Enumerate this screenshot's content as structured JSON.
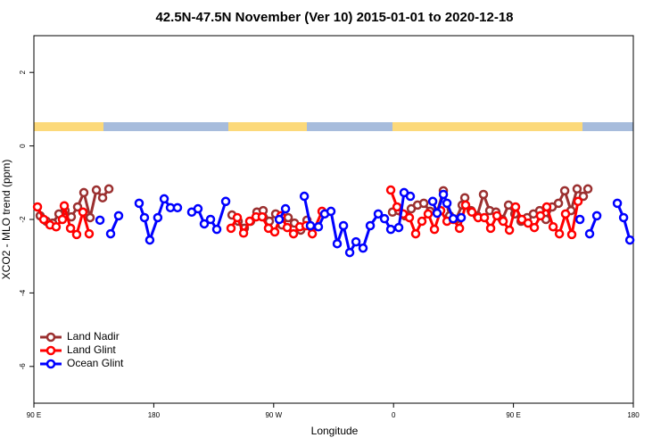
{
  "chart_data": {
    "type": "line",
    "title": "42.5N-47.5N November (Ver 10)   2015-01-01 to 2020-12-18",
    "x_label": "Longitude",
    "y_label": "XCO2 - MLO trend (ppm)",
    "xlim": [
      90,
      540
    ],
    "ylim": [
      -7,
      3
    ],
    "xticks": [
      {
        "value": 90,
        "label": "90 E"
      },
      {
        "value": 180,
        "label": "180"
      },
      {
        "value": 270,
        "label": "90 W"
      },
      {
        "value": 360,
        "label": "0"
      },
      {
        "value": 450,
        "label": "90 E"
      },
      {
        "value": 540,
        "label": "180"
      }
    ],
    "yticks": [
      -6,
      -4,
      -2,
      0,
      2
    ],
    "legend": "bottom-left",
    "series": [
      {
        "name": "Land Nadir",
        "color": "#9b3030",
        "x": [
          94.7,
          99.4,
          104.1,
          108.8,
          113.4,
          118.1,
          122.8,
          127.5,
          132.2,
          136.9,
          141.6,
          146.3,
          null,
          238.7,
          243.4,
          248,
          252.7,
          257.4,
          262.1,
          266.8,
          271.5,
          276.2,
          280.9,
          285.6,
          290.3,
          295,
          null,
          359.2,
          363.9,
          368.6,
          373.3,
          378,
          382.7,
          387.4,
          392.7,
          397.4,
          402.1,
          406.8,
          411.5,
          413.5,
          418.2,
          422.8,
          427.5,
          432.2,
          436.9,
          441.6,
          446.3,
          451,
          455.7,
          460.3,
          465,
          469.7,
          474.4,
          479.1,
          483.8,
          488.5,
          493.2,
          497.8,
          502.5,
          505.9
        ],
        "values": [
          -1.9,
          -2.05,
          -2.1,
          -1.85,
          -1.76,
          -1.93,
          -1.66,
          -1.27,
          -1.95,
          -1.2,
          -1.41,
          -1.17,
          null,
          -1.88,
          -2.05,
          -2.24,
          -2.05,
          -1.8,
          -1.76,
          -2.05,
          -1.85,
          -2.15,
          -1.95,
          -2.1,
          -2.29,
          -2.02,
          null,
          -1.8,
          -1.76,
          -1.9,
          -1.71,
          -1.61,
          -1.56,
          -1.78,
          -1.8,
          -1.22,
          -1.9,
          -2.0,
          -1.61,
          -1.41,
          -1.76,
          -1.9,
          -1.32,
          -1.76,
          -1.8,
          -2.0,
          -1.61,
          -1.85,
          -2.05,
          -1.95,
          -1.85,
          -1.76,
          -2.0,
          -1.66,
          -1.56,
          -1.22,
          -1.76,
          -1.17,
          -1.37,
          -1.17
        ]
      },
      {
        "name": "Land Glint",
        "color": "#ff0000",
        "x": [
          92.7,
          97.4,
          102.1,
          106.7,
          111.4,
          112.8,
          117.5,
          122.1,
          126.8,
          131.5,
          null,
          238,
          242.7,
          247.4,
          252,
          256.8,
          261.4,
          266.1,
          270.8,
          275.5,
          280.2,
          284.9,
          289.6,
          294.3,
          299,
          306.3,
          null,
          357.9,
          362.6,
          367.3,
          371.9,
          376.6,
          381.3,
          386,
          390.7,
          395.4,
          400.1,
          404.8,
          409.5,
          414.1,
          418.8,
          423.5,
          428.2,
          432.9,
          437.6,
          442.3,
          447,
          451.6,
          456.3,
          461,
          465.7,
          470.3,
          475,
          479.8,
          484.5,
          489.1,
          493.8,
          498.5
        ],
        "values": [
          -1.66,
          -2.0,
          -2.15,
          -2.2,
          -2.0,
          -1.63,
          -2.24,
          -2.41,
          -1.8,
          -2.39,
          null,
          -2.24,
          -1.95,
          -2.37,
          -2.05,
          -1.93,
          -1.93,
          -2.24,
          -2.34,
          -1.9,
          -2.22,
          -2.39,
          -2.2,
          -2.17,
          -2.39,
          -1.78,
          null,
          -1.2,
          -1.66,
          -1.85,
          -1.95,
          -2.39,
          -2.05,
          -1.85,
          -2.27,
          -1.76,
          -2.05,
          -2.0,
          -2.24,
          -1.61,
          -1.8,
          -1.95,
          -1.95,
          -2.24,
          -1.9,
          -2.05,
          -2.29,
          -1.66,
          -2.0,
          -2.1,
          -2.22,
          -1.9,
          -1.66,
          -2.2,
          -2.39,
          -1.85,
          -2.41,
          -1.51
        ]
      },
      {
        "name": "Ocean Glint",
        "color": "#0000ff",
        "x": [
          139.6,
          null,
          147.6,
          153.6,
          null,
          169,
          173,
          177,
          183,
          187.8,
          192.5,
          197.8,
          null,
          208.5,
          213.2,
          217.9,
          222.6,
          227.3,
          234,
          null,
          274.2,
          278.9,
          null,
          293,
          297.6,
          303.6,
          308.3,
          313,
          317.7,
          322.4,
          327.1,
          331.8,
          337.1,
          342.5,
          348.5,
          353.2,
          357.9,
          363.9,
          367.9,
          372.6,
          null,
          389.4,
          392.7,
          397.4,
          400.1,
          404.8,
          410.8,
          null,
          499.9,
          null,
          507.2,
          512.6,
          null,
          528,
          532.7,
          537.4
        ],
        "values": [
          -2.02,
          null,
          -2.39,
          -1.9,
          null,
          -1.56,
          -1.95,
          -2.56,
          -1.95,
          -1.44,
          -1.68,
          -1.68,
          null,
          -1.8,
          -1.71,
          -2.12,
          -2.0,
          -2.27,
          -1.51,
          null,
          -2.0,
          -1.71,
          null,
          -1.37,
          -2.17,
          -2.2,
          -1.85,
          -1.78,
          -2.66,
          -2.17,
          -2.9,
          -2.61,
          -2.78,
          -2.17,
          -1.85,
          -1.98,
          -2.27,
          -2.22,
          -1.27,
          -1.37,
          null,
          -1.51,
          -1.83,
          -1.32,
          -1.56,
          -1.98,
          -1.95,
          null,
          -2.0,
          null,
          -2.39,
          -1.9,
          null,
          -1.56,
          -1.95,
          -2.56
        ]
      }
    ]
  }
}
